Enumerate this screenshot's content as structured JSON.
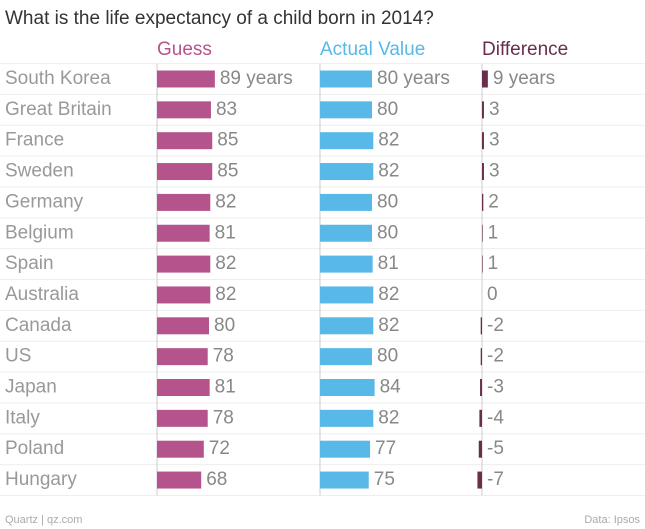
{
  "chart_data": {
    "type": "bar",
    "orientation": "horizontal",
    "title": "What is the life expectancy of a child born in 2014?",
    "categories": [
      "South Korea",
      "Great Britain",
      "France",
      "Sweden",
      "Germany",
      "Belgium",
      "Spain",
      "Australia",
      "Canada",
      "US",
      "Japan",
      "Italy",
      "Poland",
      "Hungary"
    ],
    "series": [
      {
        "name": "Guess",
        "color": "#b5548c",
        "values": [
          89,
          83,
          85,
          85,
          82,
          81,
          82,
          82,
          80,
          78,
          81,
          78,
          72,
          68
        ],
        "value_labels": [
          "89 years",
          "83",
          "85",
          "85",
          "82",
          "81",
          "82",
          "82",
          "80",
          "78",
          "81",
          "78",
          "72",
          "68"
        ]
      },
      {
        "name": "Actual Value",
        "color": "#58b8e8",
        "values": [
          80,
          80,
          82,
          82,
          80,
          80,
          81,
          82,
          82,
          80,
          84,
          82,
          77,
          75
        ],
        "value_labels": [
          "80 years",
          "80",
          "82",
          "82",
          "80",
          "80",
          "81",
          "82",
          "82",
          "80",
          "84",
          "82",
          "77",
          "75"
        ]
      },
      {
        "name": "Difference",
        "color": "#6b2d4c",
        "values": [
          9,
          3,
          3,
          3,
          2,
          1,
          1,
          0,
          -2,
          -2,
          -3,
          -4,
          -5,
          -7
        ],
        "value_labels": [
          "9 years",
          "3",
          "3",
          "3",
          "2",
          "1",
          "1",
          "0",
          "-2",
          "-2",
          "-3",
          "-4",
          "-5",
          "-7"
        ]
      }
    ],
    "credit": "Quartz | qz.com",
    "source": "Data: Ipsos"
  }
}
